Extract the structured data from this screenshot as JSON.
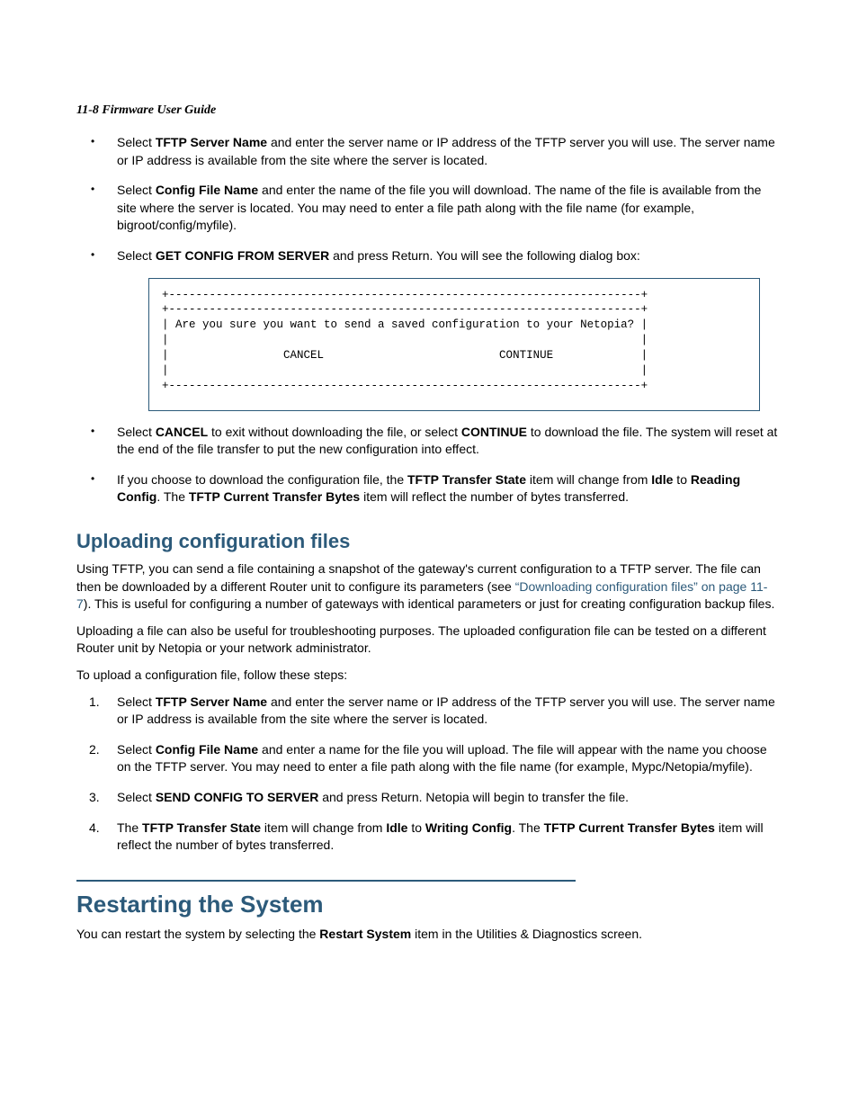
{
  "header": "11-8  Firmware User Guide",
  "top_bullets": [
    {
      "parts": [
        {
          "t": "Select "
        },
        {
          "t": "TFTP Server Name",
          "b": true
        },
        {
          "t": " and enter the server name or IP address of the TFTP server you will use. The server name or IP address is available from the site where the server is located."
        }
      ]
    },
    {
      "parts": [
        {
          "t": "Select "
        },
        {
          "t": "Config File Name",
          "b": true
        },
        {
          "t": " and enter the name of the file you will download. The name of the file is available from the site where the server is located. You may need to enter a file path along with the file name (for example, bigroot/config/myfile)."
        }
      ]
    },
    {
      "parts": [
        {
          "t": "Select "
        },
        {
          "t": "GET CONFIG FROM SERVER",
          "b": true
        },
        {
          "t": " and press Return. You will see the following dialog box:"
        }
      ]
    }
  ],
  "dialog": "+----------------------------------------------------------------------+\n+----------------------------------------------------------------------+\n| Are you sure you want to send a saved configuration to your Netopia? |\n|                                                                      |\n|                 CANCEL                          CONTINUE             |\n|                                                                      |\n+----------------------------------------------------------------------+",
  "after_dialog_bullets": [
    {
      "parts": [
        {
          "t": "Select "
        },
        {
          "t": "CANCEL",
          "b": true
        },
        {
          "t": " to exit without downloading the file, or select "
        },
        {
          "t": "CONTINUE",
          "b": true
        },
        {
          "t": " to download the file. The system will reset at the end of the file transfer to put the new configuration into effect."
        }
      ]
    },
    {
      "parts": [
        {
          "t": "If you choose to download the configuration file, the "
        },
        {
          "t": "TFTP Transfer State",
          "b": true
        },
        {
          "t": " item will change from "
        },
        {
          "t": "Idle",
          "b": true
        },
        {
          "t": " to "
        },
        {
          "t": "Reading Config",
          "b": true
        },
        {
          "t": ". The "
        },
        {
          "t": "TFTP Current Transfer Bytes",
          "b": true
        },
        {
          "t": " item will reflect the number of bytes transferred."
        }
      ]
    }
  ],
  "upload_heading": "Uploading configuration files",
  "upload_p1": {
    "pre": "Using TFTP, you can send a file containing a snapshot of the gateway's current configuration to a TFTP server. The file can then be downloaded by a different Router unit to configure its parameters (see ",
    "link": "“Downloading configuration files” on page 11-7",
    "post": "). This is useful for configuring a number of gateways with identical parameters or just for creating configuration backup files."
  },
  "upload_p2": "Uploading a file can also be useful for troubleshooting purposes. The uploaded configuration file can be tested on a different Router unit by Netopia or your network administrator.",
  "upload_p3": "To upload a configuration file, follow these steps:",
  "steps": [
    {
      "parts": [
        {
          "t": "Select "
        },
        {
          "t": "TFTP Server Name",
          "b": true
        },
        {
          "t": " and enter the server name or IP address of the TFTP server you will use. The server name or IP address is available from the site where the server is located."
        }
      ]
    },
    {
      "parts": [
        {
          "t": "Select "
        },
        {
          "t": "Config File Name",
          "b": true
        },
        {
          "t": " and enter a name for the file you will upload. The file will appear with the name you choose on the TFTP server. You may need to enter a file path along with the file name (for example, Mypc/Netopia/myfile)."
        }
      ]
    },
    {
      "parts": [
        {
          "t": "Select "
        },
        {
          "t": "SEND CONFIG TO SERVER",
          "b": true
        },
        {
          "t": " and press Return. Netopia will begin to transfer the file."
        }
      ]
    },
    {
      "parts": [
        {
          "t": "The "
        },
        {
          "t": "TFTP Transfer State",
          "b": true
        },
        {
          "t": " item will change from "
        },
        {
          "t": "Idle",
          "b": true
        },
        {
          "t": " to "
        },
        {
          "t": "Writing Config",
          "b": true
        },
        {
          "t": ". The "
        },
        {
          "t": "TFTP Current Transfer Bytes",
          "b": true
        },
        {
          "t": " item will reflect the number of bytes transferred."
        }
      ]
    }
  ],
  "restart_heading": "Restarting the System",
  "restart_p": {
    "pre": "You can restart the system by selecting the ",
    "bold": "Restart System",
    "post": " item in the Utilities & Diagnostics screen."
  }
}
